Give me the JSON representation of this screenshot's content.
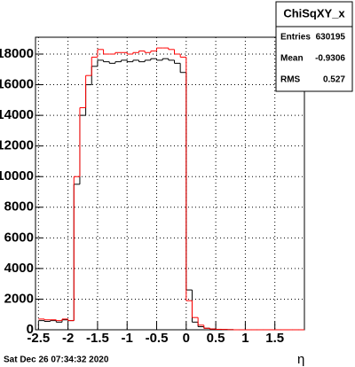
{
  "chart_data": {
    "type": "histogram",
    "x_label": "η",
    "footer": "Sat Dec 26 07:34:32 2020",
    "bins": [
      -2.5,
      -2.4,
      -2.3,
      -2.2,
      -2.1,
      -2.0,
      -1.9,
      -1.8,
      -1.7,
      -1.6,
      -1.5,
      -1.4,
      -1.3,
      -1.2,
      -1.1,
      -1.0,
      -0.9,
      -0.8,
      -0.7,
      -0.6,
      -0.5,
      -0.4,
      -0.3,
      -0.2,
      -0.1,
      0,
      0.1,
      0.2,
      0.3,
      0.4,
      0.5,
      0.6,
      0.7,
      0.8,
      0.9,
      1.0,
      1.1,
      1.2,
      1.3,
      1.4,
      1.5,
      1.6,
      1.7,
      1.8,
      1.9,
      2.0
    ],
    "series": [
      {
        "color": "#000000",
        "values": [
          600,
          550,
          600,
          500,
          650,
          600,
          9500,
          14000,
          16000,
          17200,
          17600,
          17500,
          17400,
          17500,
          17600,
          17500,
          17600,
          17500,
          17600,
          17700,
          17600,
          17700,
          17600,
          17400,
          16800,
          2600,
          500,
          200,
          100,
          50,
          30,
          20,
          10,
          0,
          0,
          0,
          0,
          0,
          0,
          0,
          0,
          0,
          0,
          0,
          0
        ]
      },
      {
        "color": "#ff0000",
        "values": [
          700,
          650,
          650,
          600,
          700,
          600,
          10000,
          14500,
          16600,
          17800,
          18300,
          18000,
          18000,
          18100,
          18100,
          18000,
          18100,
          18200,
          18100,
          18200,
          18400,
          18400,
          18300,
          18000,
          17800,
          1900,
          800,
          300,
          100,
          50,
          30,
          20,
          10,
          0,
          0,
          0,
          0,
          0,
          0,
          0,
          0,
          0,
          0,
          0,
          0
        ]
      }
    ],
    "xlim": [
      -2.55,
      2.0
    ],
    "xticks": [
      -2.5,
      -2,
      -1.5,
      -1,
      -0.5,
      0,
      0.5,
      1,
      1.5
    ],
    "ylim": [
      0,
      19100
    ],
    "yticks": [
      0,
      2000,
      4000,
      6000,
      8000,
      10000,
      12000,
      14000,
      16000,
      18000
    ],
    "grid": true,
    "stats": {
      "title": "ChiSqXY_x",
      "rows": [
        [
          "Entries",
          "630195"
        ],
        [
          "Mean",
          "-0.9306"
        ],
        [
          "RMS",
          "0.527"
        ]
      ]
    }
  }
}
